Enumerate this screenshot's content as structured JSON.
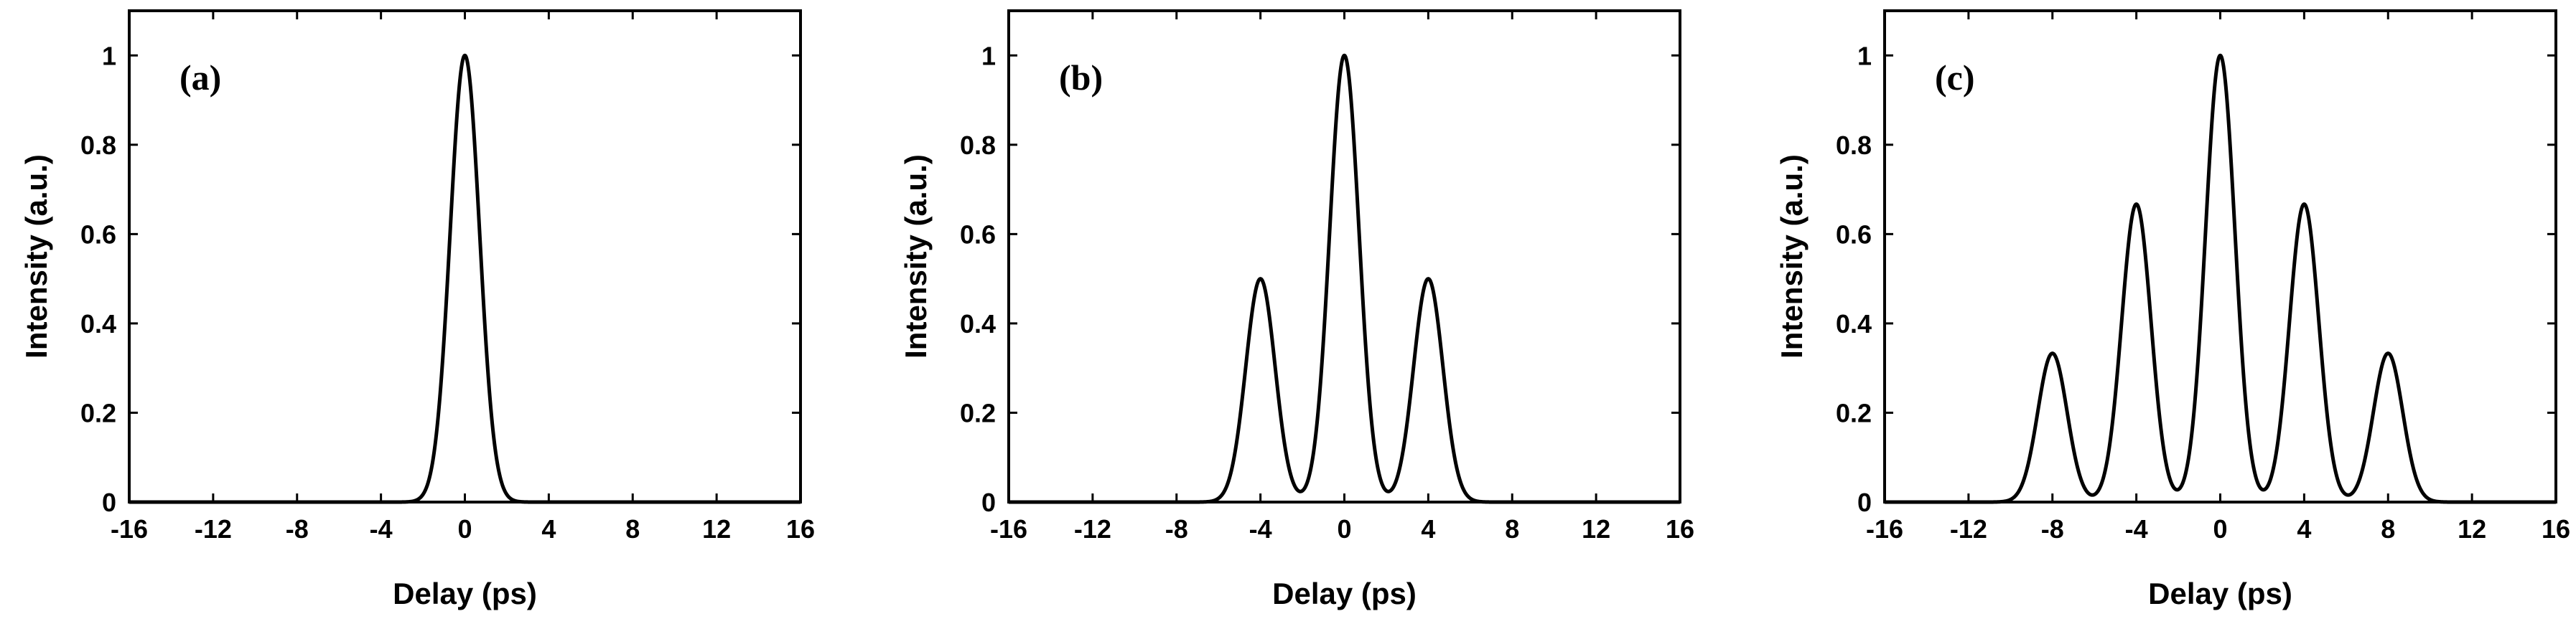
{
  "chart_data": [
    {
      "type": "line",
      "panel_label": "(a)",
      "xlabel": "Delay (ps)",
      "ylabel": "Intensity (a.u.)",
      "xlim": [
        -16,
        16
      ],
      "ylim": [
        0,
        1.1
      ],
      "xticks": [
        "-16",
        "-12",
        "-8",
        "-4",
        "0",
        "4",
        "8",
        "12",
        "16"
      ],
      "yticks": [
        "0",
        "0.2",
        "0.4",
        "0.6",
        "0.8",
        "1"
      ],
      "peak_width_ps": 0.7,
      "peaks": [
        {
          "x": 0,
          "y": 1.0
        }
      ],
      "grid": false,
      "line_color": "#000000"
    },
    {
      "type": "line",
      "panel_label": "(b)",
      "xlabel": "Delay (ps)",
      "ylabel": "Intensity (a.u.)",
      "xlim": [
        -16,
        16
      ],
      "ylim": [
        0,
        1.1
      ],
      "xticks": [
        "-16",
        "-12",
        "-8",
        "-4",
        "0",
        "4",
        "8",
        "12",
        "16"
      ],
      "yticks": [
        "0",
        "0.2",
        "0.4",
        "0.6",
        "0.8",
        "1"
      ],
      "peak_width_ps": 0.7,
      "peaks": [
        {
          "x": -4,
          "y": 0.5
        },
        {
          "x": 0,
          "y": 1.0
        },
        {
          "x": 4,
          "y": 0.5
        }
      ],
      "grid": false,
      "line_color": "#000000"
    },
    {
      "type": "line",
      "panel_label": "(c)",
      "xlabel": "Delay (ps)",
      "ylabel": "Intensity (a.u.)",
      "xlim": [
        -16,
        16
      ],
      "ylim": [
        0,
        1.1
      ],
      "xticks": [
        "-16",
        "-12",
        "-8",
        "-4",
        "0",
        "4",
        "8",
        "12",
        "16"
      ],
      "yticks": [
        "0",
        "0.2",
        "0.4",
        "0.6",
        "0.8",
        "1"
      ],
      "peak_width_ps": 0.7,
      "peaks": [
        {
          "x": -8,
          "y": 0.333
        },
        {
          "x": -4,
          "y": 0.667
        },
        {
          "x": 0,
          "y": 1.0
        },
        {
          "x": 4,
          "y": 0.667
        },
        {
          "x": 8,
          "y": 0.333
        }
      ],
      "grid": false,
      "line_color": "#000000"
    }
  ]
}
